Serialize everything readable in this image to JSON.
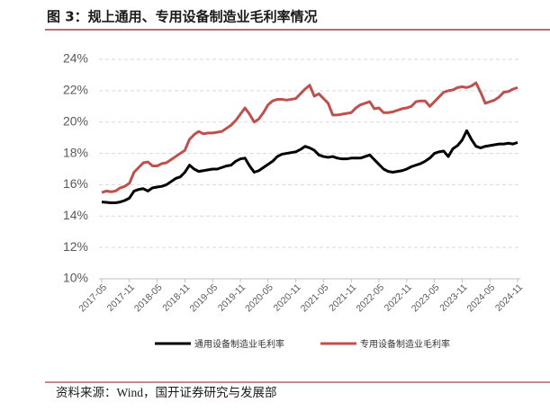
{
  "chart_data": {
    "type": "line",
    "title": "图 3：规上通用、专用设备制造业毛利率情况",
    "source": "资料来源：Wind，国开证券研究与发展部",
    "categories": [
      "2017-05",
      null,
      null,
      null,
      null,
      null,
      "2017-11",
      null,
      null,
      null,
      null,
      null,
      "2018-05",
      null,
      null,
      null,
      null,
      null,
      "2018-11",
      null,
      null,
      null,
      null,
      null,
      "2019-05",
      null,
      null,
      null,
      null,
      null,
      "2019-11",
      null,
      null,
      null,
      null,
      null,
      "2020-05",
      null,
      null,
      null,
      null,
      null,
      "2020-11",
      null,
      null,
      null,
      null,
      null,
      "2021-05",
      null,
      null,
      null,
      null,
      null,
      "2021-11",
      null,
      null,
      null,
      null,
      null,
      "2022-05",
      null,
      null,
      null,
      null,
      null,
      "2022-11",
      null,
      null,
      null,
      null,
      null,
      "2023-05",
      null,
      null,
      null,
      null,
      null,
      "2023-11",
      null,
      null,
      null,
      null,
      null,
      "2024-05",
      null,
      null,
      null,
      null,
      null,
      "2024-11"
    ],
    "series": [
      {
        "name": "通用设备制造业毛利率",
        "color": "#000000",
        "values": [
          14.9,
          14.88,
          14.85,
          14.85,
          14.9,
          15.0,
          15.15,
          15.6,
          15.7,
          15.75,
          15.6,
          15.8,
          15.85,
          15.9,
          16.0,
          16.2,
          16.4,
          16.5,
          16.8,
          17.25,
          17.0,
          16.85,
          16.9,
          16.95,
          17.0,
          17.0,
          17.1,
          17.2,
          17.25,
          17.5,
          17.65,
          17.7,
          17.2,
          16.8,
          16.9,
          17.1,
          17.3,
          17.5,
          17.8,
          17.95,
          18.0,
          18.05,
          18.1,
          18.25,
          18.45,
          18.35,
          18.2,
          17.9,
          17.8,
          17.75,
          17.8,
          17.7,
          17.65,
          17.65,
          17.7,
          17.7,
          17.7,
          17.8,
          17.9,
          17.6,
          17.3,
          17.0,
          16.85,
          16.8,
          16.85,
          16.9,
          17.0,
          17.15,
          17.25,
          17.35,
          17.5,
          17.7,
          18.0,
          18.1,
          18.15,
          17.8,
          18.3,
          18.5,
          18.85,
          19.45,
          18.9,
          18.45,
          18.35,
          18.45,
          18.5,
          18.55,
          18.6,
          18.6,
          18.65,
          18.6,
          18.7
        ]
      },
      {
        "name": "专用设备制造业毛利率",
        "color": "#c0504d",
        "values": [
          15.5,
          15.6,
          15.55,
          15.6,
          15.8,
          15.9,
          16.1,
          16.8,
          17.1,
          17.4,
          17.45,
          17.2,
          17.2,
          17.35,
          17.4,
          17.6,
          17.8,
          18.0,
          18.2,
          18.9,
          19.2,
          19.4,
          19.25,
          19.3,
          19.3,
          19.35,
          19.4,
          19.6,
          19.8,
          20.1,
          20.5,
          20.9,
          20.5,
          20.0,
          20.2,
          20.6,
          21.1,
          21.35,
          21.45,
          21.45,
          21.4,
          21.45,
          21.5,
          21.8,
          22.1,
          22.35,
          21.65,
          21.8,
          21.5,
          21.2,
          20.45,
          20.45,
          20.5,
          20.55,
          20.6,
          20.9,
          21.1,
          21.2,
          21.3,
          20.85,
          20.9,
          20.6,
          20.6,
          20.65,
          20.75,
          20.85,
          20.9,
          21.0,
          21.3,
          21.35,
          21.35,
          21.0,
          21.3,
          21.6,
          21.9,
          22.0,
          22.05,
          22.2,
          22.25,
          22.2,
          22.3,
          22.5,
          21.9,
          21.2,
          21.3,
          21.4,
          21.6,
          21.9,
          21.95,
          22.1,
          22.2
        ]
      }
    ],
    "ylim": [
      10,
      24
    ],
    "yticks": [
      {
        "value": 10,
        "label": "10%"
      },
      {
        "value": 12,
        "label": "12%"
      },
      {
        "value": 14,
        "label": "14%"
      },
      {
        "value": 16,
        "label": "16%"
      },
      {
        "value": 18,
        "label": "18%"
      },
      {
        "value": 20,
        "label": "20%"
      },
      {
        "value": 22,
        "label": "22%"
      },
      {
        "value": 24,
        "label": "24%"
      }
    ],
    "grid": true,
    "legend": "bottom"
  }
}
